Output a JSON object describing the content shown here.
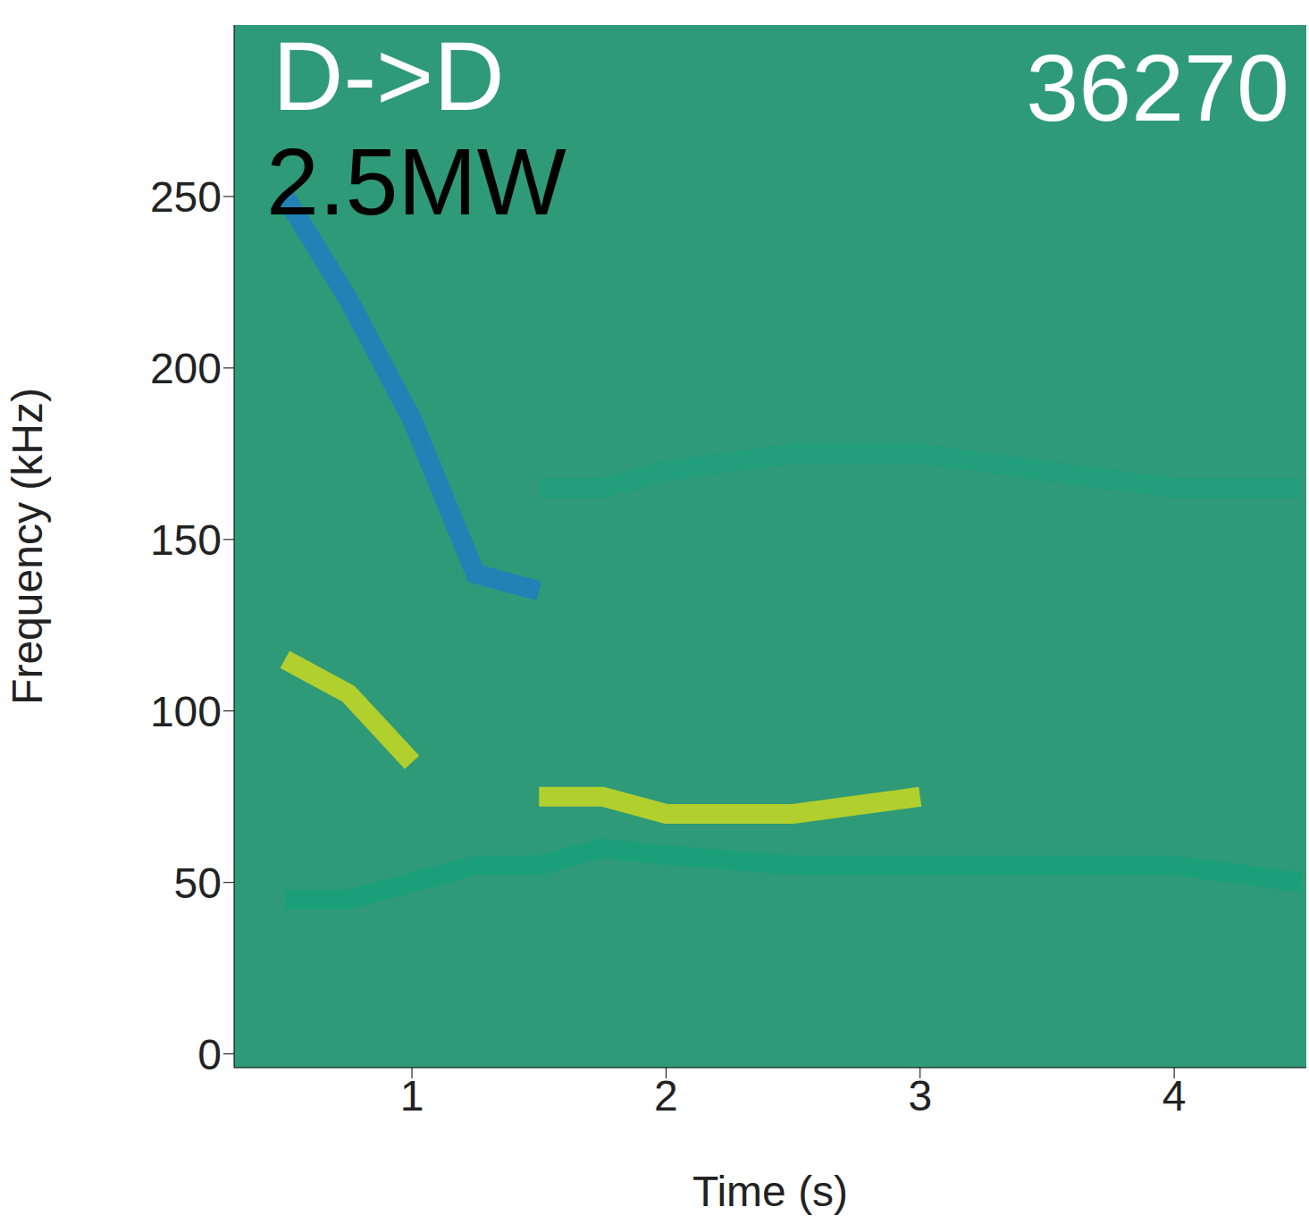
{
  "chart_data": {
    "type": "line",
    "x_label": "Time (s)",
    "y_label": "Frequency (kHz)",
    "xlim": [
      0.3,
      4.52
    ],
    "ylim": [
      -4,
      300
    ],
    "xticks": [
      1,
      2,
      3,
      4
    ],
    "yticks": [
      0,
      50,
      100,
      150,
      200,
      250
    ],
    "x": [
      0.5,
      0.75,
      1.0,
      1.25,
      1.5,
      1.75,
      2.0,
      2.5,
      3.0,
      3.5,
      4.0,
      4.5
    ],
    "series": [
      {
        "color": "#1f7fc0",
        "values": [
          250,
          220,
          185,
          140,
          135,
          null,
          null,
          null,
          null,
          null,
          null,
          null
        ]
      },
      {
        "color": "#1fa07a",
        "values": [
          null,
          null,
          null,
          null,
          165,
          165,
          170,
          175,
          175,
          170,
          165,
          165
        ]
      },
      {
        "color": "#c8d820",
        "values": [
          115,
          105,
          85,
          null,
          75,
          75,
          70,
          70,
          75,
          null,
          null,
          null
        ]
      },
      {
        "color": "#17a078",
        "values": [
          45,
          45,
          50,
          55,
          55,
          60,
          58,
          55,
          55,
          55,
          55,
          50
        ]
      }
    ],
    "annotations": [
      {
        "text": "D->D",
        "color": "#ffffff"
      },
      {
        "text": "2.5MW",
        "color": "#000000"
      },
      {
        "text": "36270",
        "color": "#ffffff"
      }
    ]
  }
}
